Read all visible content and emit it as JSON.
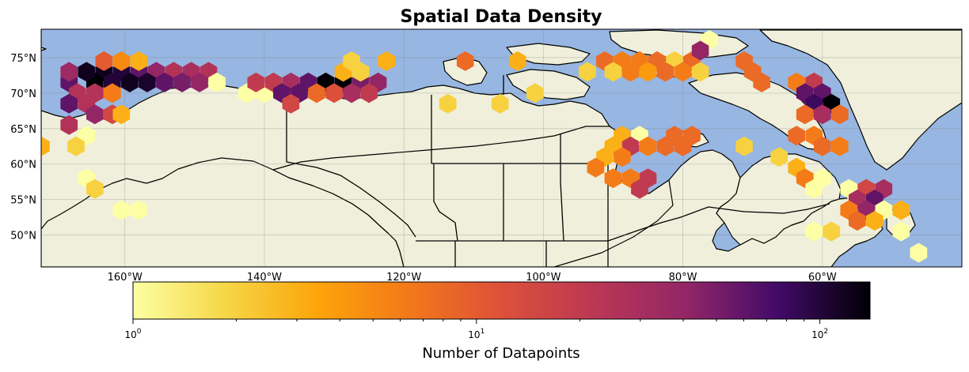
{
  "chart_data": {
    "type": "heatmap",
    "subtype": "hexbin-density-map",
    "title": "Spatial Data Density",
    "projection": "PlateCarree",
    "extent": {
      "lon": [
        -172,
        -40
      ],
      "lat": [
        45.5,
        79
      ]
    },
    "map_features": [
      "ocean",
      "land",
      "coastlines",
      "country-borders",
      "province-borders",
      "gridlines"
    ],
    "grid": true,
    "lon_ticks": [
      {
        "value": -160,
        "label": "160°W"
      },
      {
        "value": -140,
        "label": "140°W"
      },
      {
        "value": -120,
        "label": "120°W"
      },
      {
        "value": -100,
        "label": "100°W"
      },
      {
        "value": -80,
        "label": "80°W"
      },
      {
        "value": -60,
        "label": "60°W"
      }
    ],
    "lat_ticks": [
      {
        "value": 75,
        "label": "75°N"
      },
      {
        "value": 70,
        "label": "70°N"
      },
      {
        "value": 65,
        "label": "65°N"
      },
      {
        "value": 60,
        "label": "60°N"
      },
      {
        "value": 55,
        "label": "55°N"
      },
      {
        "value": 50,
        "label": "50°N"
      }
    ],
    "colorbar": {
      "label": "Number of Datapoints",
      "scale": "log",
      "range": [
        1,
        140
      ],
      "colormap": "inferno_r",
      "tick_labels": [
        {
          "value": 1,
          "label": "10",
          "exp": "0"
        },
        {
          "value": 10,
          "label": "10",
          "exp": "1"
        },
        {
          "value": 100,
          "label": "10",
          "exp": "2"
        }
      ]
    },
    "bins": [
      {
        "lon": -163,
        "lat": 73,
        "count": 120
      },
      {
        "lon": -160.5,
        "lat": 73,
        "count": 100
      },
      {
        "lon": -158,
        "lat": 73,
        "count": 60
      },
      {
        "lon": -155.5,
        "lat": 73,
        "count": 40
      },
      {
        "lon": -153,
        "lat": 73,
        "count": 25
      },
      {
        "lon": -150.5,
        "lat": 73,
        "count": 30
      },
      {
        "lon": -148,
        "lat": 73,
        "count": 25
      },
      {
        "lon": -164.3,
        "lat": 71.5,
        "count": 140
      },
      {
        "lon": -161.8,
        "lat": 71.5,
        "count": 100
      },
      {
        "lon": -159.3,
        "lat": 71.5,
        "count": 120
      },
      {
        "lon": -156.8,
        "lat": 71.5,
        "count": 110
      },
      {
        "lon": -154.3,
        "lat": 71.5,
        "count": 60
      },
      {
        "lon": -151.8,
        "lat": 71.5,
        "count": 50
      },
      {
        "lon": -149.3,
        "lat": 71.5,
        "count": 40
      },
      {
        "lon": -146.8,
        "lat": 71.5,
        "count": 1
      },
      {
        "lon": -168,
        "lat": 71.5,
        "count": 60
      },
      {
        "lon": -165.5,
        "lat": 73,
        "count": 120
      },
      {
        "lon": -168,
        "lat": 73,
        "count": 35
      },
      {
        "lon": -166.8,
        "lat": 70,
        "count": 25
      },
      {
        "lon": -164.3,
        "lat": 70,
        "count": 25
      },
      {
        "lon": -161.8,
        "lat": 70,
        "count": 6
      },
      {
        "lon": -168,
        "lat": 68.5,
        "count": 60
      },
      {
        "lon": -165.5,
        "lat": 68.5,
        "count": 25
      },
      {
        "lon": -164.3,
        "lat": 67,
        "count": 40
      },
      {
        "lon": -161.8,
        "lat": 67,
        "count": 15
      },
      {
        "lon": -160.5,
        "lat": 67,
        "count": 3
      },
      {
        "lon": -168,
        "lat": 65.5,
        "count": 25
      },
      {
        "lon": -165.5,
        "lat": 64,
        "count": 1
      },
      {
        "lon": -172,
        "lat": 62.5,
        "count": 3
      },
      {
        "lon": -167,
        "lat": 62.5,
        "count": 2
      },
      {
        "lon": -163,
        "lat": 74.5,
        "count": 10
      },
      {
        "lon": -160.5,
        "lat": 74.5,
        "count": 5
      },
      {
        "lon": -158,
        "lat": 74.5,
        "count": 3
      },
      {
        "lon": -165.5,
        "lat": 58,
        "count": 1
      },
      {
        "lon": -164.3,
        "lat": 56.5,
        "count": 2
      },
      {
        "lon": -160.5,
        "lat": 53.5,
        "count": 1
      },
      {
        "lon": -158,
        "lat": 53.5,
        "count": 1
      },
      {
        "lon": -142.5,
        "lat": 70,
        "count": 1
      },
      {
        "lon": -140,
        "lat": 70,
        "count": 1
      },
      {
        "lon": -141.2,
        "lat": 71.5,
        "count": 20
      },
      {
        "lon": -138.7,
        "lat": 71.5,
        "count": 20
      },
      {
        "lon": -136.2,
        "lat": 71.5,
        "count": 30
      },
      {
        "lon": -133.7,
        "lat": 71.5,
        "count": 60
      },
      {
        "lon": -131.2,
        "lat": 71.5,
        "count": 140
      },
      {
        "lon": -128.7,
        "lat": 71.5,
        "count": 140
      },
      {
        "lon": -126.2,
        "lat": 71.5,
        "count": 50
      },
      {
        "lon": -123.7,
        "lat": 71.5,
        "count": 40
      },
      {
        "lon": -137.5,
        "lat": 70,
        "count": 60
      },
      {
        "lon": -135,
        "lat": 70,
        "count": 60
      },
      {
        "lon": -132.5,
        "lat": 70,
        "count": 8
      },
      {
        "lon": -130,
        "lat": 70,
        "count": 12
      },
      {
        "lon": -127.5,
        "lat": 70,
        "count": 30
      },
      {
        "lon": -125,
        "lat": 70,
        "count": 20
      },
      {
        "lon": -136.2,
        "lat": 68.5,
        "count": 15
      },
      {
        "lon": -128.7,
        "lat": 73,
        "count": 3
      },
      {
        "lon": -126.2,
        "lat": 73,
        "count": 2
      },
      {
        "lon": -127.5,
        "lat": 74.5,
        "count": 2
      },
      {
        "lon": -122.5,
        "lat": 74.5,
        "count": 3
      },
      {
        "lon": -113.7,
        "lat": 68.5,
        "count": 2
      },
      {
        "lon": -106.2,
        "lat": 68.5,
        "count": 2
      },
      {
        "lon": -111.2,
        "lat": 74.5,
        "count": 8
      },
      {
        "lon": -103.7,
        "lat": 74.5,
        "count": 3
      },
      {
        "lon": -101.2,
        "lat": 70,
        "count": 2
      },
      {
        "lon": -93.7,
        "lat": 73,
        "count": 2
      },
      {
        "lon": -91.2,
        "lat": 74.5,
        "count": 8
      },
      {
        "lon": -88.7,
        "lat": 74.5,
        "count": 6
      },
      {
        "lon": -86.2,
        "lat": 74.5,
        "count": 6
      },
      {
        "lon": -83.7,
        "lat": 74.5,
        "count": 8
      },
      {
        "lon": -81.2,
        "lat": 74.5,
        "count": 2
      },
      {
        "lon": -78.7,
        "lat": 74.5,
        "count": 8
      },
      {
        "lon": -90,
        "lat": 73,
        "count": 2
      },
      {
        "lon": -87.5,
        "lat": 73,
        "count": 6
      },
      {
        "lon": -85,
        "lat": 73,
        "count": 4
      },
      {
        "lon": -82.5,
        "lat": 73,
        "count": 8
      },
      {
        "lon": -80,
        "lat": 73,
        "count": 6
      },
      {
        "lon": -77.5,
        "lat": 73,
        "count": 2
      },
      {
        "lon": -76.2,
        "lat": 77.5,
        "count": 1
      },
      {
        "lon": -77.5,
        "lat": 76,
        "count": 40
      },
      {
        "lon": -71.2,
        "lat": 74.5,
        "count": 8
      },
      {
        "lon": -70,
        "lat": 73,
        "count": 8
      },
      {
        "lon": -68.7,
        "lat": 71.5,
        "count": 8
      },
      {
        "lon": -63.7,
        "lat": 71.5,
        "count": 6
      },
      {
        "lon": -61.2,
        "lat": 71.5,
        "count": 20
      },
      {
        "lon": -62.5,
        "lat": 70,
        "count": 60
      },
      {
        "lon": -60,
        "lat": 70,
        "count": 60
      },
      {
        "lon": -58.7,
        "lat": 68.5,
        "count": 140
      },
      {
        "lon": -61.2,
        "lat": 68.5,
        "count": 80
      },
      {
        "lon": -62.5,
        "lat": 67,
        "count": 8
      },
      {
        "lon": -60,
        "lat": 67,
        "count": 30
      },
      {
        "lon": -57.5,
        "lat": 67,
        "count": 8
      },
      {
        "lon": -88.7,
        "lat": 64,
        "count": 3
      },
      {
        "lon": -86.2,
        "lat": 64,
        "count": 1
      },
      {
        "lon": -81.2,
        "lat": 64,
        "count": 8
      },
      {
        "lon": -78.7,
        "lat": 64,
        "count": 8
      },
      {
        "lon": -90,
        "lat": 62.5,
        "count": 3
      },
      {
        "lon": -87.5,
        "lat": 62.5,
        "count": 20
      },
      {
        "lon": -85,
        "lat": 62.5,
        "count": 6
      },
      {
        "lon": -82.5,
        "lat": 62.5,
        "count": 8
      },
      {
        "lon": -80,
        "lat": 62.5,
        "count": 8
      },
      {
        "lon": -91.2,
        "lat": 61,
        "count": 3
      },
      {
        "lon": -88.7,
        "lat": 61,
        "count": 6
      },
      {
        "lon": -92.5,
        "lat": 59.5,
        "count": 6
      },
      {
        "lon": -90,
        "lat": 58,
        "count": 6
      },
      {
        "lon": -87.5,
        "lat": 58,
        "count": 6
      },
      {
        "lon": -85,
        "lat": 58,
        "count": 20
      },
      {
        "lon": -86.2,
        "lat": 56.5,
        "count": 20
      },
      {
        "lon": -71.2,
        "lat": 62.5,
        "count": 2
      },
      {
        "lon": -63.7,
        "lat": 64,
        "count": 8
      },
      {
        "lon": -61.2,
        "lat": 64,
        "count": 6
      },
      {
        "lon": -60,
        "lat": 62.5,
        "count": 8
      },
      {
        "lon": -57.5,
        "lat": 62.5,
        "count": 6
      },
      {
        "lon": -66.2,
        "lat": 61,
        "count": 2
      },
      {
        "lon": -63.7,
        "lat": 59.5,
        "count": 3
      },
      {
        "lon": -62.5,
        "lat": 58,
        "count": 6
      },
      {
        "lon": -60,
        "lat": 58,
        "count": 1
      },
      {
        "lon": -61.2,
        "lat": 56.5,
        "count": 1
      },
      {
        "lon": -56.2,
        "lat": 56.5,
        "count": 1
      },
      {
        "lon": -53.7,
        "lat": 56.5,
        "count": 15
      },
      {
        "lon": -51.2,
        "lat": 56.5,
        "count": 30
      },
      {
        "lon": -55,
        "lat": 55,
        "count": 30
      },
      {
        "lon": -52.5,
        "lat": 55,
        "count": 60
      },
      {
        "lon": -56.2,
        "lat": 53.5,
        "count": 6
      },
      {
        "lon": -53.7,
        "lat": 53.5,
        "count": 40
      },
      {
        "lon": -51.2,
        "lat": 53.5,
        "count": 1
      },
      {
        "lon": -48.7,
        "lat": 53.5,
        "count": 3
      },
      {
        "lon": -55,
        "lat": 52,
        "count": 8
      },
      {
        "lon": -52.5,
        "lat": 52,
        "count": 3
      },
      {
        "lon": -58.7,
        "lat": 50.5,
        "count": 2
      },
      {
        "lon": -61.2,
        "lat": 50.5,
        "count": 1
      },
      {
        "lon": -48.7,
        "lat": 50.5,
        "count": 1
      },
      {
        "lon": -46.2,
        "lat": 47.5,
        "count": 1
      }
    ]
  }
}
